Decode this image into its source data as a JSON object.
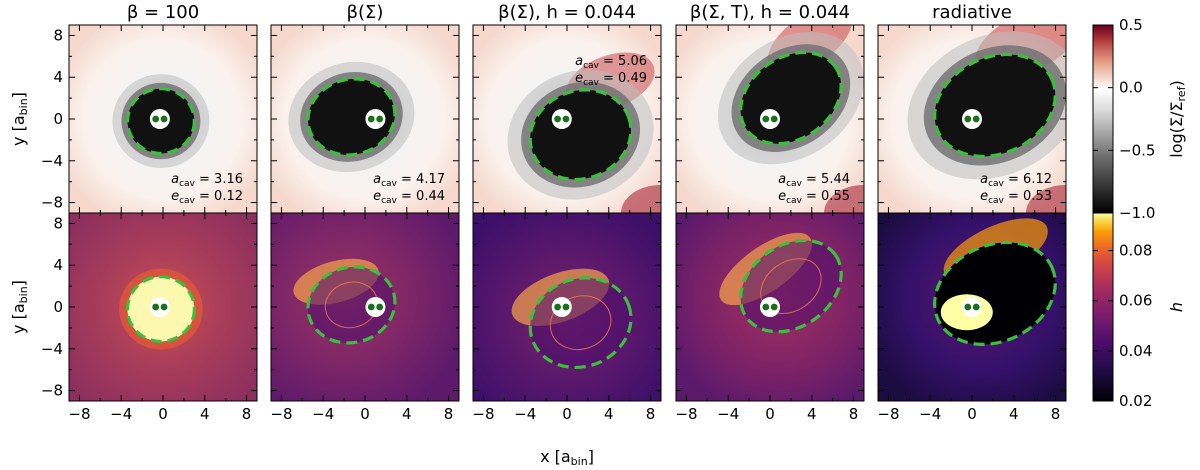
{
  "chart_data": {
    "type": "heatmap",
    "column_titles": [
      {
        "main": "β = 100",
        "suffix": ""
      },
      {
        "main": "β(Σ)",
        "suffix": ""
      },
      {
        "main": "β(Σ)",
        "suffix": ", h = 0.044"
      },
      {
        "main": "β(Σ, T)",
        "suffix": ", h = 0.044"
      },
      {
        "main": "radiative",
        "suffix": ""
      }
    ],
    "xlabel": {
      "base": "x [a",
      "sub": "bin",
      "close": "]"
    },
    "ylabel": {
      "base": "y [a",
      "sub": "bin",
      "close": "]"
    },
    "xlim": [
      -9,
      9
    ],
    "ylim": [
      -9,
      9
    ],
    "xticks": [
      "−8",
      "−4",
      "0",
      "4",
      "8"
    ],
    "yticks": [
      "8",
      "4",
      "0",
      "−4",
      "−8"
    ],
    "tick_values": [
      -8,
      -4,
      0,
      4,
      8
    ],
    "rows": [
      {
        "quantity": "surface density",
        "colorbar": {
          "label": "log(Σ/Σ_ref)",
          "label_parts": {
            "pre": "log(Σ/Σ",
            "sub": "ref",
            "post": ")"
          },
          "range": [
            -1.0,
            0.5
          ],
          "ticks": [
            "0.5",
            "0.0",
            "−0.5",
            "−1.0"
          ],
          "tick_values": [
            0.5,
            0.0,
            -0.5,
            -1.0
          ],
          "colormap": "black-gray-white-red"
        }
      },
      {
        "quantity": "aspect ratio",
        "colorbar": {
          "label": "h",
          "range": [
            0.02,
            0.095
          ],
          "ticks": [
            "0.08",
            "0.06",
            "0.04",
            "0.02"
          ],
          "tick_values": [
            0.08,
            0.06,
            0.04,
            0.02
          ],
          "colormap": "inferno"
        }
      }
    ],
    "cavities": [
      {
        "a_cav": "3.16",
        "e_cav": "0.12",
        "center": [
          -0.2,
          -0.2
        ],
        "semi_axes": [
          3.2,
          3.1
        ],
        "tilt_deg": 0,
        "binary": [
          -0.3,
          0
        ],
        "label_pos": "bottom-right"
      },
      {
        "a_cav": "4.17",
        "e_cav": "0.44",
        "center": [
          -1.3,
          0.2
        ],
        "semi_axes": [
          4.2,
          3.6
        ],
        "tilt_deg": 15,
        "binary": [
          1.0,
          0
        ],
        "label_pos": "bottom-right"
      },
      {
        "a_cav": "5.06",
        "e_cav": "0.49",
        "center": [
          1.3,
          -1.5
        ],
        "semi_axes": [
          4.9,
          4.2
        ],
        "tilt_deg": 20,
        "binary": [
          -0.5,
          0
        ],
        "label_pos": "top-right"
      },
      {
        "a_cav": "5.44",
        "e_cav": "0.55",
        "center": [
          2.0,
          2.0
        ],
        "semi_axes": [
          5.2,
          3.9
        ],
        "tilt_deg": 35,
        "binary": [
          0.0,
          0
        ],
        "label_pos": "bottom-right"
      },
      {
        "a_cav": "6.12",
        "e_cav": "0.53",
        "center": [
          2.2,
          1.3
        ],
        "semi_axes": [
          6.0,
          4.6
        ],
        "tilt_deg": 25,
        "binary": [
          0.0,
          0
        ],
        "label_pos": "bottom-right"
      }
    ],
    "annotation_symbols": {
      "a": "a",
      "e": "e",
      "sub": "cav"
    },
    "cavity_outline_color": "#3cbf3c",
    "binary_color": "#1a6f1a"
  }
}
